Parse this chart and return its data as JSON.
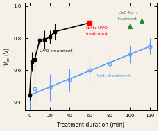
{
  "uvo_x": [
    0,
    2,
    5,
    10,
    15,
    20,
    25,
    60
  ],
  "uvo_y": [
    0.448,
    0.653,
    0.668,
    0.788,
    0.791,
    0.808,
    0.84,
    0.896
  ],
  "uvo_yerr": [
    0.03,
    0.06,
    0.065,
    0.04,
    0.055,
    0.04,
    0.05,
    0.03
  ],
  "n2h4_x": [
    0,
    5,
    20,
    40,
    60,
    80,
    100,
    120
  ],
  "n2h4_y": [
    0.445,
    0.487,
    0.493,
    0.54,
    0.6,
    0.64,
    0.7,
    0.75
  ],
  "n2h4_yerr": [
    0.11,
    0.11,
    0.085,
    0.07,
    0.075,
    0.065,
    0.055,
    0.05
  ],
  "n2h4_fit_x": [
    0,
    120
  ],
  "n2h4_fit_y": [
    0.445,
    0.75
  ],
  "uvo_n2h4_x": [
    100
  ],
  "uvo_n2h4_y": [
    0.875
  ],
  "uvo_label": "UVO treatment",
  "n2h4_uvo_label": "UVO-N2H4 treatment",
  "n2h4_uvo_annotation": "N2H4-UVO treatment",
  "xlabel": "Treatment duration (min)",
  "ylabel": "Voc (V)",
  "xlim": [
    -5,
    127
  ],
  "ylim": [
    0.35,
    1.02
  ],
  "xticks": [
    0,
    20,
    40,
    60,
    80,
    100,
    120
  ],
  "yticks": [
    0.4,
    0.6,
    0.8,
    1.0
  ],
  "bg_color": "#f5f0e8",
  "uvo_color": "black",
  "n2h4_color": "#5599ff",
  "n2h4_uvo_color": "#228833",
  "highlight_color": "red"
}
